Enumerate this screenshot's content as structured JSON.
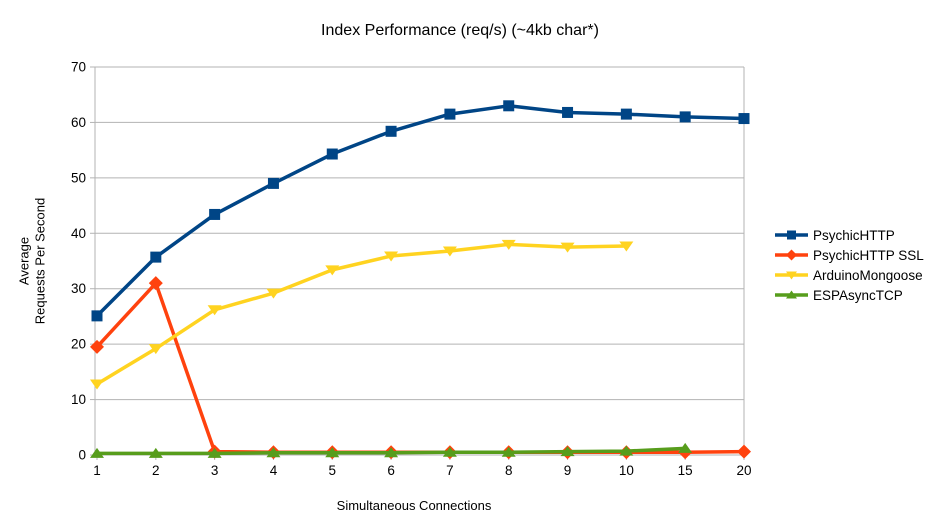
{
  "chart_data": {
    "type": "line",
    "title": "Index Performance (req/s) (~4kb char*)",
    "xlabel": "Simultaneous Connections",
    "ylabel_lines": [
      "Average",
      "Requests Per Second"
    ],
    "categories": [
      "1",
      "2",
      "3",
      "4",
      "5",
      "6",
      "7",
      "8",
      "9",
      "10",
      "15",
      "20"
    ],
    "ylim": [
      0,
      70
    ],
    "yticks": [
      0,
      10,
      20,
      30,
      40,
      50,
      60,
      70
    ],
    "grid": "horizontal",
    "legend_position": "right",
    "series": [
      {
        "name": "PsychicHTTP",
        "color": "#004586",
        "marker": "square",
        "values": [
          25.1,
          35.7,
          43.4,
          49.0,
          54.3,
          58.4,
          61.5,
          63.0,
          61.8,
          61.5,
          61.0,
          60.7
        ]
      },
      {
        "name": "PsychicHTTP SSL",
        "color": "#FF420E",
        "marker": "diamond",
        "values": [
          19.5,
          31.0,
          0.6,
          0.5,
          0.5,
          0.5,
          0.5,
          0.5,
          0.5,
          0.5,
          0.5,
          0.6
        ]
      },
      {
        "name": "ArduinoMongoose",
        "color": "#FFD320",
        "marker": "triangle-down",
        "values": [
          12.8,
          19.2,
          26.2,
          29.2,
          33.4,
          35.9,
          36.8,
          38.0,
          37.5,
          37.7,
          null,
          null
        ]
      },
      {
        "name": "ESPAsyncTCP",
        "color": "#579D1C",
        "marker": "triangle-up",
        "values": [
          0.3,
          0.3,
          0.3,
          0.4,
          0.4,
          0.4,
          0.5,
          0.5,
          0.6,
          0.7,
          1.2,
          null
        ]
      }
    ]
  },
  "colors": {
    "grid": "#b3b3b3",
    "text": "#000000",
    "background": "#ffffff"
  }
}
